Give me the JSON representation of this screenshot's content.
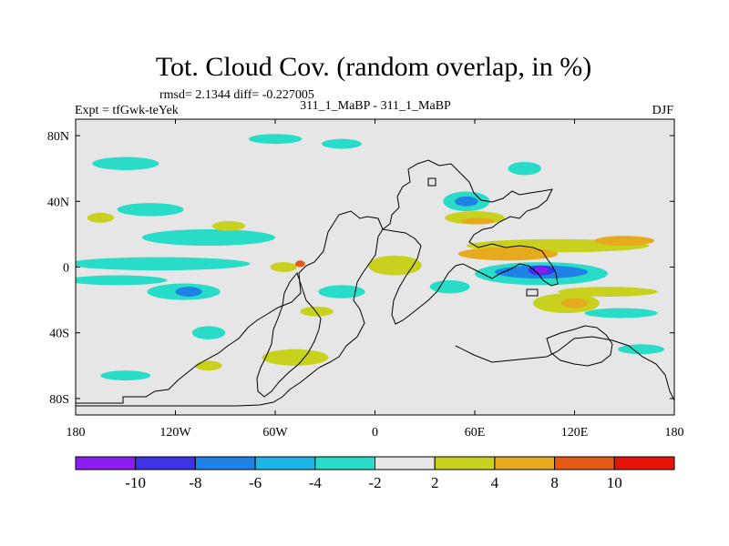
{
  "chart_data": {
    "type": "heatmap",
    "title": "Tot. Cloud Cov. (random overlap, in %)",
    "stats_label": "rmsd= 2.1344 diff= -0.227005",
    "case_label": "311_1_MaBP - 311_1_MaBP",
    "expt_label": "Expt = tfGwk-teYek",
    "season_label": "DJF",
    "x_ticks": [
      "180",
      "120W",
      "60W",
      "0",
      "60E",
      "120E",
      "180"
    ],
    "y_ticks": [
      "80N",
      "40N",
      "0",
      "40S",
      "80S"
    ],
    "xlim": [
      -180,
      180
    ],
    "ylim": [
      -90,
      90
    ],
    "colorbar": {
      "labels": [
        "-10",
        "-8",
        "-6",
        "-4",
        "-2",
        "2",
        "4",
        "8",
        "10"
      ],
      "colors": [
        "#8a1ef0",
        "#3c32e6",
        "#1e82e6",
        "#1eb4e6",
        "#28dcc8",
        "#e6e6e6",
        "#c8d21e",
        "#e6aa1e",
        "#e65a14",
        "#e6140a"
      ]
    },
    "blobs": [
      {
        "lon": -130,
        "lat": 2,
        "rx": 55,
        "ry": 4,
        "level": "-4"
      },
      {
        "lon": -155,
        "lat": -8,
        "rx": 30,
        "ry": 3,
        "level": "-4"
      },
      {
        "lon": -115,
        "lat": -15,
        "rx": 22,
        "ry": 5,
        "level": "-4"
      },
      {
        "lon": -112,
        "lat": -15,
        "rx": 8,
        "ry": 3,
        "level": "-6"
      },
      {
        "lon": -100,
        "lat": 18,
        "rx": 40,
        "ry": 5,
        "level": "-4"
      },
      {
        "lon": -135,
        "lat": 35,
        "rx": 20,
        "ry": 4,
        "level": "-4"
      },
      {
        "lon": -150,
        "lat": 63,
        "rx": 20,
        "ry": 4,
        "level": "-4"
      },
      {
        "lon": -60,
        "lat": 78,
        "rx": 16,
        "ry": 3,
        "level": "-4"
      },
      {
        "lon": -20,
        "lat": 75,
        "rx": 12,
        "ry": 3,
        "level": "-4"
      },
      {
        "lon": -20,
        "lat": -15,
        "rx": 14,
        "ry": 4,
        "level": "-4"
      },
      {
        "lon": -100,
        "lat": -40,
        "rx": 10,
        "ry": 4,
        "level": "-4"
      },
      {
        "lon": -150,
        "lat": -66,
        "rx": 15,
        "ry": 3,
        "level": "-4"
      },
      {
        "lon": 100,
        "lat": -4,
        "rx": 40,
        "ry": 7,
        "level": "-4"
      },
      {
        "lon": 100,
        "lat": -3,
        "rx": 28,
        "ry": 4,
        "level": "-6"
      },
      {
        "lon": 100,
        "lat": -2,
        "rx": 8,
        "ry": 3,
        "level": "-8"
      },
      {
        "lon": 100,
        "lat": -2,
        "rx": 4,
        "ry": 2,
        "level": "-10"
      },
      {
        "lon": 55,
        "lat": 40,
        "rx": 14,
        "ry": 6,
        "level": "-4"
      },
      {
        "lon": 55,
        "lat": 40,
        "rx": 7,
        "ry": 3,
        "level": "-6"
      },
      {
        "lon": 45,
        "lat": -12,
        "rx": 12,
        "ry": 4,
        "level": "-4"
      },
      {
        "lon": 148,
        "lat": -28,
        "rx": 22,
        "ry": 3,
        "level": "-4"
      },
      {
        "lon": 90,
        "lat": 60,
        "rx": 10,
        "ry": 4,
        "level": "-4"
      },
      {
        "lon": 160,
        "lat": -50,
        "rx": 14,
        "ry": 3,
        "level": "-4"
      },
      {
        "lon": 110,
        "lat": 13,
        "rx": 55,
        "ry": 4,
        "level": "4"
      },
      {
        "lon": 80,
        "lat": 8,
        "rx": 30,
        "ry": 4,
        "level": "8"
      },
      {
        "lon": 150,
        "lat": 16,
        "rx": 18,
        "ry": 3,
        "level": "8"
      },
      {
        "lon": 60,
        "lat": 30,
        "rx": 18,
        "ry": 4,
        "level": "4"
      },
      {
        "lon": 62,
        "lat": 28,
        "rx": 10,
        "ry": 2,
        "level": "8"
      },
      {
        "lon": 5,
        "lat": 0,
        "rx": 8,
        "ry": 4,
        "level": "8"
      },
      {
        "lon": 12,
        "lat": 1,
        "rx": 16,
        "ry": 6,
        "level": "4"
      },
      {
        "lon": 115,
        "lat": -22,
        "rx": 20,
        "ry": 6,
        "level": "4"
      },
      {
        "lon": 120,
        "lat": -22,
        "rx": 8,
        "ry": 3,
        "level": "8"
      },
      {
        "lon": 140,
        "lat": -15,
        "rx": 30,
        "ry": 3,
        "level": "4"
      },
      {
        "lon": -165,
        "lat": 30,
        "rx": 8,
        "ry": 3,
        "level": "4"
      },
      {
        "lon": -88,
        "lat": 25,
        "rx": 10,
        "ry": 3,
        "level": "4"
      },
      {
        "lon": -35,
        "lat": -27,
        "rx": 10,
        "ry": 3,
        "level": "4"
      },
      {
        "lon": -48,
        "lat": -55,
        "rx": 20,
        "ry": 5,
        "level": "4"
      },
      {
        "lon": -100,
        "lat": -60,
        "rx": 8,
        "ry": 3,
        "level": "4"
      },
      {
        "lon": -55,
        "lat": 0,
        "rx": 8,
        "ry": 3,
        "level": "4"
      },
      {
        "lon": -45,
        "lat": 2,
        "rx": 3,
        "ry": 2,
        "level": "10"
      }
    ],
    "coastline_note": "black outlines of land masses"
  }
}
